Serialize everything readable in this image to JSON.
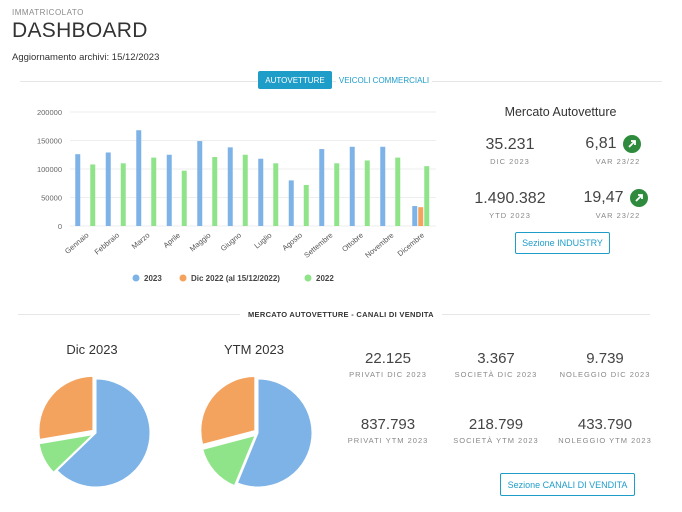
{
  "header": {
    "eyebrow": "IMMATRICOLATO",
    "title": "DASHBOARD",
    "updated": "Aggiornamento archivi: 15/12/2023"
  },
  "tabs": [
    {
      "label": "AUTOVETTURE",
      "active": true
    },
    {
      "label": "VEICOLI COMMERCIALI",
      "active": false
    }
  ],
  "colors": {
    "s2023": "#7eb3e8",
    "sDic2022": "#f4a35e",
    "s2022": "#8fe48a",
    "accent": "#1f9dc9",
    "upIcon": "#2e8b3e"
  },
  "chart_data": [
    {
      "type": "bar",
      "categories": [
        "Gennaio",
        "Febbraio",
        "Marzo",
        "Aprile",
        "Maggio",
        "Giugno",
        "Luglio",
        "Agosto",
        "Settembre",
        "Ottobre",
        "Novembre",
        "Dicembre"
      ],
      "yticks": [
        "0",
        "50000",
        "100000",
        "150000",
        "200000"
      ],
      "ylim": [
        0,
        200000
      ],
      "series": [
        {
          "name": "2023",
          "values": [
            126000,
            129000,
            168000,
            125000,
            149000,
            138000,
            118000,
            80000,
            135000,
            139000,
            139000,
            35000
          ]
        },
        {
          "name": "Dic 2022 (al 15/12/2022)",
          "values": [
            null,
            null,
            null,
            null,
            null,
            null,
            null,
            null,
            null,
            null,
            null,
            33000
          ]
        },
        {
          "name": "2022",
          "values": [
            108000,
            110000,
            120000,
            97000,
            121000,
            125000,
            110000,
            72000,
            110000,
            115000,
            120000,
            105000
          ]
        }
      ],
      "grid": true,
      "legend": "bottom"
    },
    {
      "type": "pie",
      "title": "Dic 2023",
      "labels": [
        "Privati",
        "Società",
        "Noleggio"
      ],
      "values": [
        22125,
        3367,
        9739
      ]
    },
    {
      "type": "pie",
      "title": "YTM 2023",
      "labels": [
        "Privati",
        "Società",
        "Noleggio"
      ],
      "values": [
        837793,
        218799,
        433790
      ]
    }
  ],
  "mercato": {
    "title": "Mercato Autovetture",
    "dic_value": "35.231",
    "dic_label": "DIC 2023",
    "var1_value": "6,81",
    "var1_label": "VAR 23/22",
    "ytd_value": "1.490.382",
    "ytd_label": "YTD 2023",
    "var2_value": "19,47",
    "var2_label": "VAR 23/22",
    "button": "Sezione INDUSTRY",
    "up_icon": "arrow-up-right-icon"
  },
  "canali": {
    "section_title": "MERCATO AUTOVETTURE - CANALI DI VENDITA",
    "pie1_title": "Dic 2023",
    "pie2_title": "YTM 2023",
    "stats": [
      {
        "value": "22.125",
        "label": "PRIVATI DIC 2023"
      },
      {
        "value": "3.367",
        "label": "SOCIETÀ DIC 2023"
      },
      {
        "value": "9.739",
        "label": "NOLEGGIO DIC 2023"
      },
      {
        "value": "837.793",
        "label": "PRIVATI YTM 2023"
      },
      {
        "value": "218.799",
        "label": "SOCIETÀ YTM 2023"
      },
      {
        "value": "433.790",
        "label": "NOLEGGIO YTM 2023"
      }
    ],
    "button": "Sezione CANALI DI VENDITA"
  }
}
